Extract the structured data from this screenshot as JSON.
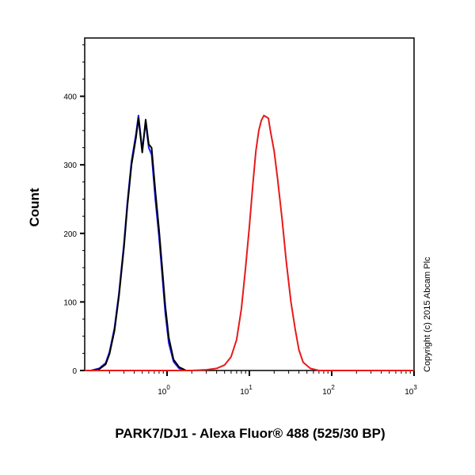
{
  "chart_data": {
    "type": "line",
    "title": "",
    "xlabel": "PARK7/DJ1 - Alexa Fluor® 488 (525/30 BP)",
    "ylabel": "Count",
    "x_scale": "log",
    "xlim": [
      0.1,
      1000
    ],
    "ylim": [
      0,
      485
    ],
    "x_ticks": [
      {
        "value": 1,
        "base": "10",
        "exp": "0"
      },
      {
        "value": 10,
        "base": "10",
        "exp": "1"
      },
      {
        "value": 100,
        "base": "10",
        "exp": "2"
      },
      {
        "value": 1000,
        "base": "10",
        "exp": "3"
      }
    ],
    "y_ticks": [
      0,
      100,
      200,
      300,
      400
    ],
    "grid": false,
    "annotation": "Copyright (c) 2015 Abcam Plc",
    "series": [
      {
        "color": "#1a1aff",
        "x": [
          0.1,
          0.12,
          0.15,
          0.18,
          0.2,
          0.23,
          0.26,
          0.3,
          0.33,
          0.37,
          0.42,
          0.45,
          0.5,
          0.55,
          0.6,
          0.65,
          0.72,
          0.8,
          0.88,
          0.95,
          1.05,
          1.2,
          1.4,
          1.7,
          2
        ],
        "y": [
          0,
          0,
          3,
          11,
          27,
          62,
          112,
          185,
          245,
          305,
          345,
          372,
          322,
          362,
          325,
          315,
          250,
          195,
          135,
          85,
          40,
          13,
          3,
          0,
          0
        ]
      },
      {
        "color": "#000000",
        "x": [
          0.1,
          0.12,
          0.15,
          0.18,
          0.2,
          0.23,
          0.26,
          0.3,
          0.33,
          0.37,
          0.42,
          0.45,
          0.5,
          0.55,
          0.6,
          0.65,
          0.72,
          0.8,
          0.88,
          0.95,
          1.05,
          1.2,
          1.4,
          1.7,
          2
        ],
        "y": [
          0,
          0,
          2,
          9,
          24,
          58,
          108,
          180,
          240,
          300,
          340,
          368,
          318,
          366,
          330,
          325,
          262,
          205,
          145,
          95,
          48,
          16,
          5,
          0,
          0
        ]
      },
      {
        "color": "#e8191a",
        "x": [
          0.1,
          2,
          3,
          4,
          5,
          6,
          7,
          8,
          9,
          10,
          11,
          12,
          13,
          14,
          15,
          16,
          17,
          18,
          20,
          22,
          25,
          28,
          32,
          36,
          40,
          45,
          55,
          70,
          1000
        ],
        "y": [
          0,
          0,
          1,
          3,
          8,
          20,
          45,
          90,
          150,
          210,
          270,
          320,
          350,
          365,
          372,
          370,
          368,
          350,
          320,
          280,
          220,
          160,
          100,
          60,
          30,
          12,
          3,
          0,
          0
        ]
      }
    ]
  }
}
